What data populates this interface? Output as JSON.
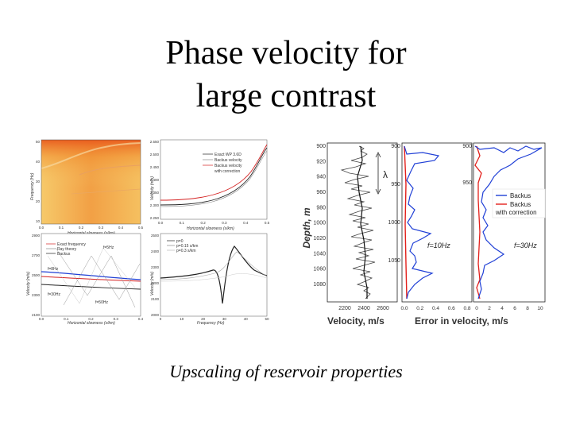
{
  "slide": {
    "title_line1": "Phase velocity for",
    "title_line2": "large contrast",
    "caption": "Upscaling of reservoir properties"
  },
  "left_figure": {
    "heatmap": {
      "ylabel": "Frequency (Hz)",
      "xlabel": "Horizontal slowness (s/km)",
      "yticks": [
        "50",
        "40",
        "30",
        "20",
        "10"
      ],
      "xticks": [
        "0.0",
        "0.1",
        "0.2",
        "0.3",
        "0.4",
        "0.5"
      ],
      "colors": {
        "low": "#f6c96a",
        "high": "#e8551a",
        "band": "#f08a2c"
      }
    },
    "top_right_plot": {
      "ylabel": "Velocity (m/s)",
      "xlabel": "Horizontal slowness (s/km)",
      "yticks": [
        "2.550",
        "2.500",
        "2.450",
        "2.400",
        "2.350",
        "2.300",
        "2.250"
      ],
      "xticks": [
        "0.0",
        "0.1",
        "0.2",
        "0.3",
        "0.4",
        "0.5"
      ],
      "legend": [
        "Exact WP 3.6D",
        "Backus velocity",
        "Backus velocity",
        "with correction"
      ]
    },
    "bottom_left_plot": {
      "ylabel": "Velocity (m/s)",
      "xlabel": "Horizontal slowness (s/km)",
      "legend": [
        "Exact frequency",
        "Ray theory",
        "Backus"
      ],
      "annotations": [
        "f=5Hz",
        "f=8Hz",
        "f=30Hz",
        "f=50Hz"
      ],
      "yticks": [
        "2900",
        "2700",
        "2500",
        "2300",
        "2100"
      ],
      "xticks": [
        "0.0",
        "0.1",
        "0.2",
        "0.3",
        "0.4"
      ]
    },
    "bottom_right_plot": {
      "ylabel": "Velocity (m/s)",
      "xlabel": "Frequency (Hz)",
      "legend": [
        "p=0",
        "p=0.15 s/km",
        "p=0.3 s/km"
      ],
      "yticks": [
        "2500",
        "2400",
        "2300",
        "2200",
        "2100",
        "2000"
      ],
      "xticks": [
        "0",
        "10",
        "20",
        "30",
        "40",
        "50"
      ]
    }
  },
  "right_figure": {
    "ylabel": "Depth, m",
    "depth_ticks": [
      "900",
      "920",
      "940",
      "960",
      "980",
      "1000",
      "1020",
      "1040",
      "1060",
      "1080"
    ],
    "velocity_xticks": [
      "2200",
      "2400",
      "2600"
    ],
    "velocity_label": "Velocity, m/s",
    "lambda_symbol": "λ",
    "error_label": "Error in velocity, m/s",
    "panel2_depth_ticks": [
      "900",
      "950",
      "1000",
      "1050"
    ],
    "panel2_xticks": [
      "0.0",
      "0.2",
      "0.4",
      "0.6",
      "0.8"
    ],
    "panel2_annotation": "f=10Hz",
    "panel3_depth_ticks": [
      "900",
      "950"
    ],
    "panel3_xticks": [
      "0",
      "2",
      "4",
      "6",
      "8",
      "10"
    ],
    "panel3_annotation": "f=30Hz",
    "legend": [
      {
        "label": "Backus",
        "color": "#1f3fd6"
      },
      {
        "label": "Backus",
        "color": "#e3201b"
      },
      {
        "label": "with correction",
        "color": ""
      }
    ]
  }
}
